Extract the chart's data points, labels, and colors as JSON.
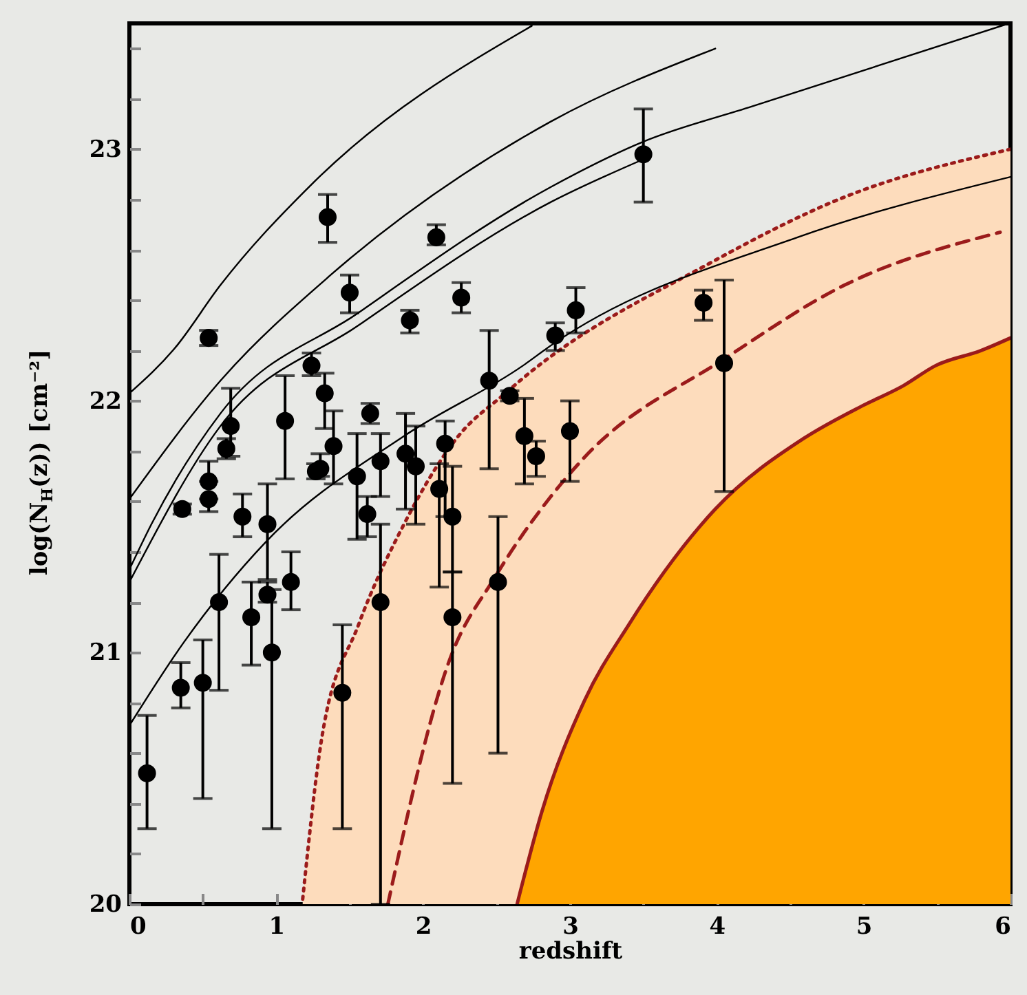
{
  "chart_data": {
    "type": "scatter",
    "xlabel": "redshift",
    "ylabel": "log(N$_{H}$(z)) [cm⁻²]",
    "xlim": [
      0,
      6
    ],
    "ylim": [
      20,
      23.5
    ],
    "xticks": [
      0,
      {
        "value": 0.5,
        "label": null
      },
      1,
      {
        "value": 1.5,
        "label": null
      },
      2,
      {
        "value": 2.5,
        "label": null
      },
      3,
      {
        "value": 3.5,
        "label": null
      },
      4,
      {
        "value": 4.5,
        "label": null
      },
      5,
      {
        "value": 5.5,
        "label": null
      },
      6
    ],
    "yticks": [
      20,
      {
        "value": 20.2,
        "label": null
      },
      {
        "value": 20.4,
        "label": null
      },
      {
        "value": 20.6,
        "label": null
      },
      {
        "value": 20.8,
        "label": null
      },
      21,
      {
        "value": 21.2,
        "label": null
      },
      {
        "value": 21.4,
        "label": null
      },
      {
        "value": 21.6,
        "label": null
      },
      {
        "value": 21.8,
        "label": null
      },
      22,
      {
        "value": 22.2,
        "label": null
      },
      {
        "value": 22.4,
        "label": null
      },
      {
        "value": 22.6,
        "label": null
      },
      {
        "value": 22.8,
        "label": null
      },
      23,
      {
        "value": 23.2,
        "label": null
      },
      {
        "value": 23.4,
        "label": null
      }
    ],
    "series": [
      {
        "type": "area",
        "color": "#fddcbc",
        "line_style": "dotted",
        "x": [
          1.18,
          1.31,
          1.56,
          1.87,
          2.24,
          2.56,
          2.68,
          3.93,
          4.87,
          6
        ],
        "values": [
          20.02,
          20.66,
          21.11,
          21.51,
          21.86,
          22.03,
          22.09,
          22.54,
          22.81,
          23.0
        ]
      },
      {
        "type": "area",
        "color": "#ffa500",
        "line_style": "solid",
        "x": [
          2.64,
          2.81,
          3.1,
          3.4,
          3.99,
          4.59,
          4.99,
          5.27,
          5.49,
          5.8,
          6
        ],
        "values": [
          20.0,
          20.37,
          20.81,
          21.11,
          21.57,
          21.85,
          21.98,
          22.06,
          22.14,
          22.2,
          22.25
        ]
      },
      {
        "type": "line",
        "color": "#9b1b1b",
        "line_style": "dashed",
        "x": [
          1.76,
          2.18,
          2.49,
          2.87,
          3.09,
          4.06,
          4.87,
          5.93
        ],
        "values": [
          20.0,
          20.97,
          21.3,
          21.62,
          21.77,
          22.17,
          22.46,
          22.67
        ]
      },
      {
        "type": "line",
        "color": "#000000",
        "line_style": "solid",
        "x": [
          0,
          0.31,
          0.62,
          1.24,
          2.74
        ],
        "values": [
          22.03,
          22.21,
          22.46,
          22.86,
          23.49
        ]
      },
      {
        "type": "line",
        "color": "#000000",
        "line_style": "solid",
        "x": [
          0,
          0.62,
          1.37,
          2.87,
          3.99
        ],
        "values": [
          21.61,
          22.08,
          22.5,
          23.11,
          23.4
        ]
      },
      {
        "type": "line",
        "color": "#000000",
        "line_style": "solid",
        "x": [
          0,
          0.15,
          0.62,
          1.56,
          2.87,
          3.5,
          4.24,
          5.99
        ],
        "values": [
          21.33,
          21.51,
          21.95,
          22.35,
          22.85,
          23.03,
          23.17,
          23.5
        ]
      },
      {
        "type": "line",
        "color": "#000000",
        "line_style": "solid",
        "x": [
          0,
          0.62,
          1.56,
          2.87,
          3.5
        ],
        "values": [
          21.28,
          21.9,
          22.3,
          22.79,
          22.96
        ]
      },
      {
        "type": "line",
        "color": "#000000",
        "line_style": "solid",
        "x": [
          0,
          0.37,
          0.93,
          1.87,
          2.68,
          2.87,
          4.55,
          6
        ],
        "values": [
          20.71,
          21.04,
          21.44,
          21.86,
          22.14,
          22.22,
          22.65,
          22.89
        ]
      },
      {
        "marker": "circle",
        "color": "#000000",
        "x": [
          0.12,
          0.35,
          0.5,
          0.36,
          0.54,
          0.54,
          0.54,
          0.69,
          0.66,
          0.61,
          0.77,
          0.83,
          0.94,
          0.94,
          0.97,
          1.06,
          1.1,
          1.35,
          1.5,
          1.24,
          1.33,
          1.39,
          1.27,
          1.3,
          1.45,
          1.55,
          1.62,
          1.64,
          1.71,
          1.71,
          1.91,
          1.88,
          1.95,
          2.09,
          2.26,
          2.15,
          2.11,
          2.2,
          2.2,
          2.51,
          2.45,
          2.59,
          2.69,
          2.77,
          2.9,
          3.04,
          3.0,
          3.5,
          3.91,
          4.05
        ],
        "values": [
          20.52,
          20.86,
          20.88,
          21.57,
          21.68,
          21.61,
          22.25,
          21.9,
          21.81,
          21.2,
          21.54,
          21.14,
          21.51,
          21.23,
          21.0,
          21.92,
          21.28,
          22.73,
          22.43,
          22.14,
          22.03,
          21.82,
          21.72,
          21.73,
          20.84,
          21.7,
          21.55,
          21.95,
          21.76,
          21.2,
          22.32,
          21.79,
          21.74,
          22.65,
          22.41,
          21.83,
          21.65,
          21.54,
          21.14,
          21.28,
          22.08,
          22.02,
          21.86,
          21.78,
          22.26,
          22.36,
          21.88,
          22.98,
          22.39,
          22.15
        ],
        "errors": [
          [
            20.3,
            20.75
          ],
          [
            20.78,
            20.96
          ],
          [
            20.42,
            21.05
          ],
          [
            21.55,
            21.59
          ],
          [
            21.68,
            21.76
          ],
          [
            21.56,
            21.61
          ],
          [
            22.22,
            22.28
          ],
          [
            21.78,
            22.05
          ],
          [
            21.77,
            21.85
          ],
          [
            20.85,
            21.39
          ],
          [
            21.46,
            21.63
          ],
          [
            20.95,
            21.28
          ],
          [
            21.29,
            21.67
          ],
          [
            21.2,
            21.28
          ],
          [
            20.3,
            21.25
          ],
          [
            21.69,
            22.1
          ],
          [
            21.17,
            21.4
          ],
          [
            22.63,
            22.82
          ],
          [
            22.35,
            22.5
          ],
          [
            22.1,
            22.19
          ],
          [
            21.89,
            22.11
          ],
          [
            21.67,
            21.96
          ],
          [
            21.69,
            21.75
          ],
          [
            21.7,
            21.79
          ],
          [
            20.3,
            21.11
          ],
          [
            21.45,
            21.87
          ],
          [
            21.46,
            21.62
          ],
          [
            21.91,
            21.99
          ],
          [
            21.62,
            21.87
          ],
          [
            20.0,
            21.51
          ],
          [
            22.27,
            22.36
          ],
          [
            21.57,
            21.95
          ],
          [
            21.51,
            21.9
          ],
          [
            22.62,
            22.7
          ],
          [
            22.35,
            22.47
          ],
          [
            21.54,
            21.92
          ],
          [
            21.26,
            21.75
          ],
          [
            21.32,
            21.74
          ],
          [
            20.48,
            21.32
          ],
          [
            20.6,
            21.54
          ],
          [
            21.73,
            22.28
          ],
          [
            22.0,
            22.04
          ],
          [
            21.67,
            22.01
          ],
          [
            21.7,
            21.84
          ],
          [
            22.2,
            22.31
          ],
          [
            22.27,
            22.45
          ],
          [
            21.68,
            22.0
          ],
          [
            22.79,
            23.16
          ],
          [
            22.32,
            22.44
          ],
          [
            21.64,
            22.48
          ]
        ]
      }
    ]
  }
}
